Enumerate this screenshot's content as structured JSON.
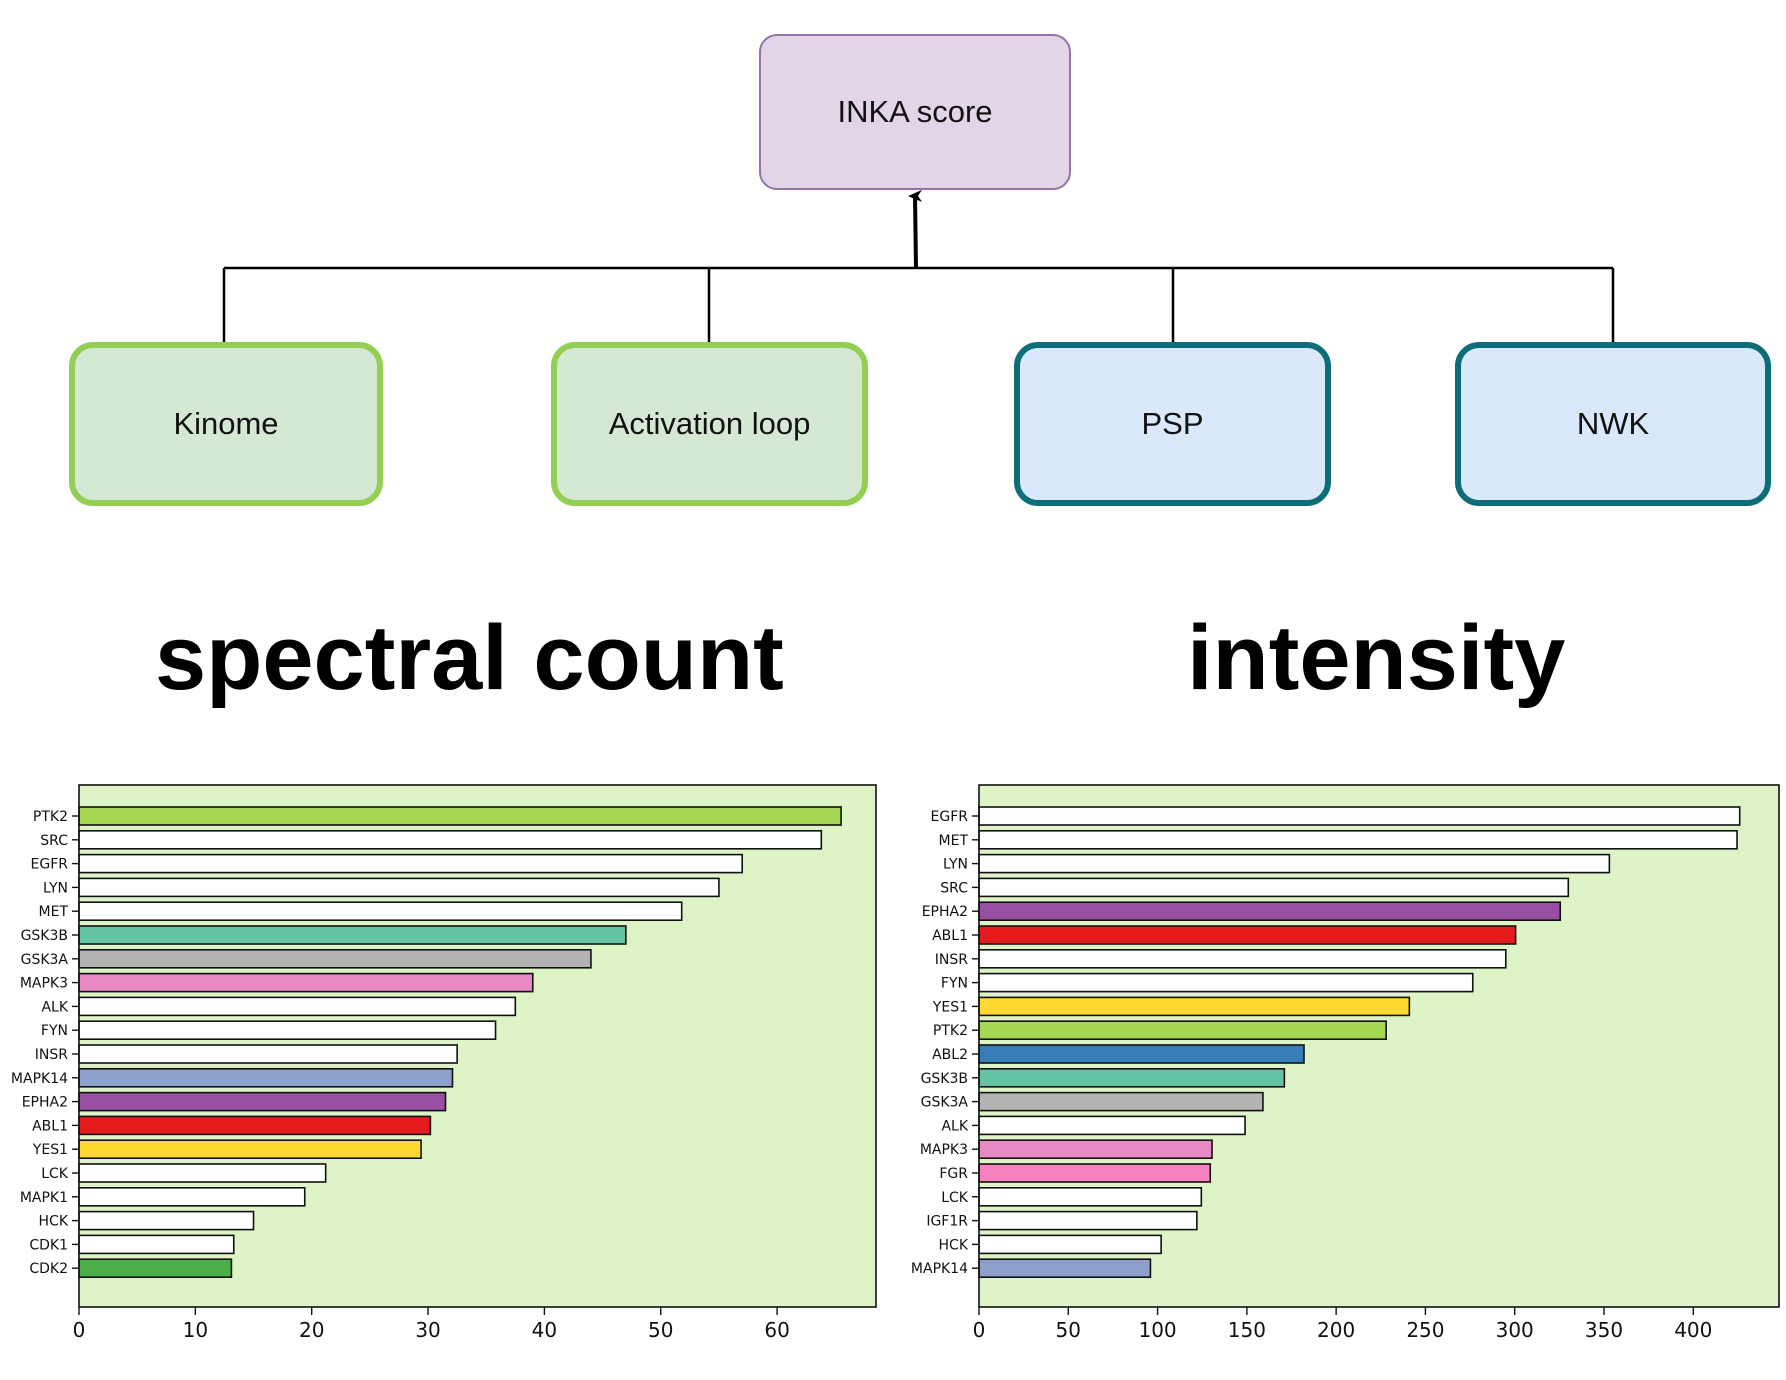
{
  "diagram": {
    "top_node": "INKA score",
    "children": [
      {
        "label": "Kinome",
        "style": "green"
      },
      {
        "label": "Activation loop",
        "style": "green"
      },
      {
        "label": "PSP",
        "style": "blue"
      },
      {
        "label": "NWK",
        "style": "blue"
      }
    ]
  },
  "titles": {
    "left": "spectral count",
    "right": "intensity"
  },
  "colors": {
    "plot_background": "#def3c6",
    "bar_default": "#ffffff",
    "bar_edge": "#111111"
  },
  "chart_data": [
    {
      "type": "bar",
      "orientation": "horizontal",
      "title": "spectral count",
      "xlabel": "",
      "ylabel": "",
      "xlim": [
        0,
        68.5
      ],
      "xticks": [
        0,
        10,
        20,
        30,
        40,
        50,
        60
      ],
      "grid": false,
      "categories": [
        "PTK2",
        "SRC",
        "EGFR",
        "LYN",
        "MET",
        "GSK3B",
        "GSK3A",
        "MAPK3",
        "ALK",
        "FYN",
        "INSR",
        "MAPK14",
        "EPHA2",
        "ABL1",
        "YES1",
        "LCK",
        "MAPK1",
        "HCK",
        "CDK1",
        "CDK2"
      ],
      "values": [
        65.5,
        63.8,
        57,
        55,
        51.8,
        47,
        44,
        39,
        37.5,
        35.8,
        32.5,
        32.1,
        31.5,
        30.2,
        29.4,
        21.2,
        19.4,
        15,
        13.3,
        13.1
      ],
      "colors": [
        "#a6d854",
        "#ffffff",
        "#ffffff",
        "#ffffff",
        "#ffffff",
        "#66c2a5",
        "#b3b3b3",
        "#e78ac3",
        "#ffffff",
        "#ffffff",
        "#ffffff",
        "#8da0cb",
        "#984ea3",
        "#e41a1c",
        "#ffd92f",
        "#ffffff",
        "#ffffff",
        "#ffffff",
        "#ffffff",
        "#4daf4a"
      ]
    },
    {
      "type": "bar",
      "orientation": "horizontal",
      "title": "intensity",
      "xlabel": "",
      "ylabel": "",
      "xlim": [
        0,
        448
      ],
      "xticks": [
        0,
        50,
        100,
        150,
        200,
        250,
        300,
        350,
        400
      ],
      "grid": false,
      "categories": [
        "EGFR",
        "MET",
        "LYN",
        "SRC",
        "EPHA2",
        "ABL1",
        "INSR",
        "FYN",
        "YES1",
        "PTK2",
        "ABL2",
        "GSK3B",
        "GSK3A",
        "ALK",
        "MAPK3",
        "FGR",
        "LCK",
        "IGF1R",
        "HCK",
        "MAPK14"
      ],
      "values": [
        426,
        424.5,
        353,
        330,
        325.5,
        300.5,
        295,
        276.5,
        241,
        228,
        182,
        171,
        159,
        149,
        130.5,
        129.5,
        124.5,
        122,
        102,
        96
      ],
      "colors": [
        "#ffffff",
        "#ffffff",
        "#ffffff",
        "#ffffff",
        "#984ea3",
        "#e41a1c",
        "#ffffff",
        "#ffffff",
        "#ffd92f",
        "#a6d854",
        "#377eb8",
        "#66c2a5",
        "#b3b3b3",
        "#ffffff",
        "#e78ac3",
        "#f781bf",
        "#ffffff",
        "#ffffff",
        "#ffffff",
        "#8da0cb"
      ]
    }
  ]
}
